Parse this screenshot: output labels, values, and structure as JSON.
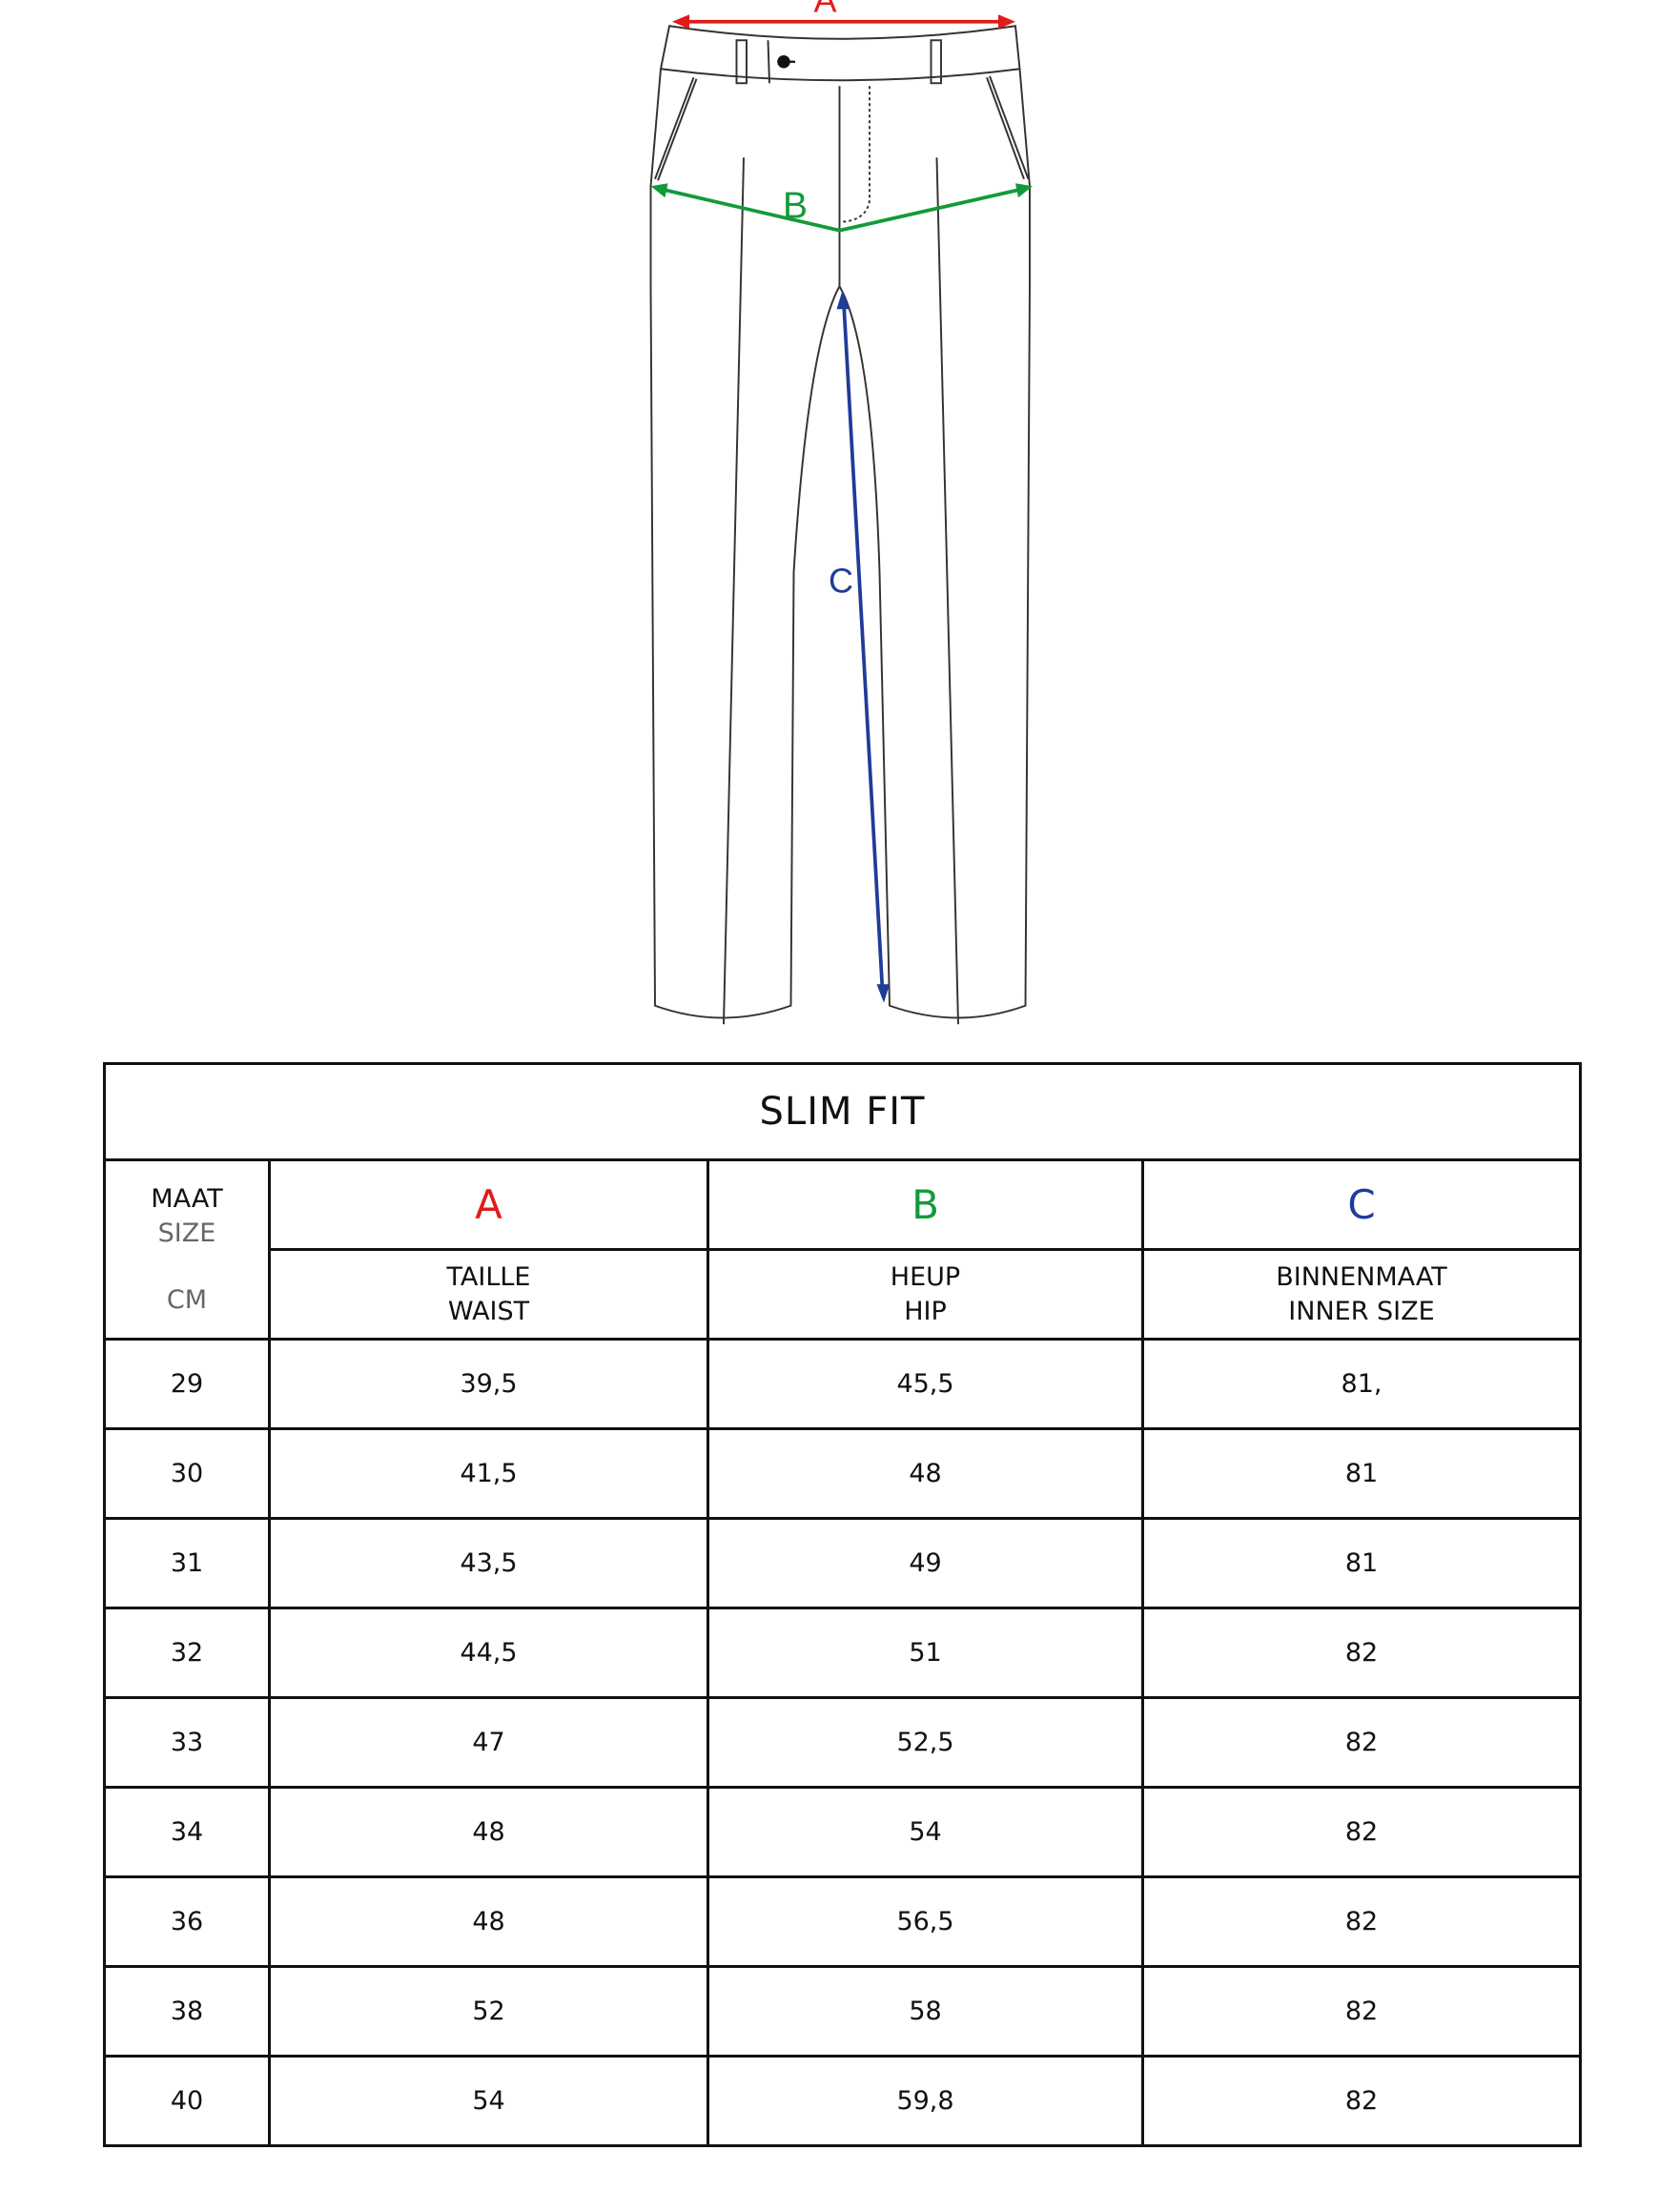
{
  "diagram": {
    "labels": {
      "a": "A",
      "b": "B",
      "c": "C"
    },
    "colors": {
      "a": "#e11b1b",
      "b": "#139a3a",
      "c": "#1f3c99"
    }
  },
  "table": {
    "title": "SLIM FIT",
    "size_header": {
      "line1": "MAAT",
      "line2": "SIZE",
      "unit": "CM"
    },
    "columns": [
      {
        "letter": "A",
        "nl": "TAILLE",
        "en": "WAIST"
      },
      {
        "letter": "B",
        "nl": "HEUP",
        "en": "HIP"
      },
      {
        "letter": "C",
        "nl": "BINNENMAAT",
        "en": "INNER SIZE"
      }
    ],
    "rows": [
      [
        "29",
        "39,5",
        "45,5",
        "81,"
      ],
      [
        "30",
        "41,5",
        "48",
        "81"
      ],
      [
        "31",
        "43,5",
        "49",
        "81"
      ],
      [
        "32",
        "44,5",
        "51",
        "82"
      ],
      [
        "33",
        "47",
        "52,5",
        "82"
      ],
      [
        "34",
        "48",
        "54",
        "82"
      ],
      [
        "36",
        "48",
        "56,5",
        "82"
      ],
      [
        "38",
        "52",
        "58",
        "82"
      ],
      [
        "40",
        "54",
        "59,8",
        "82"
      ]
    ]
  }
}
